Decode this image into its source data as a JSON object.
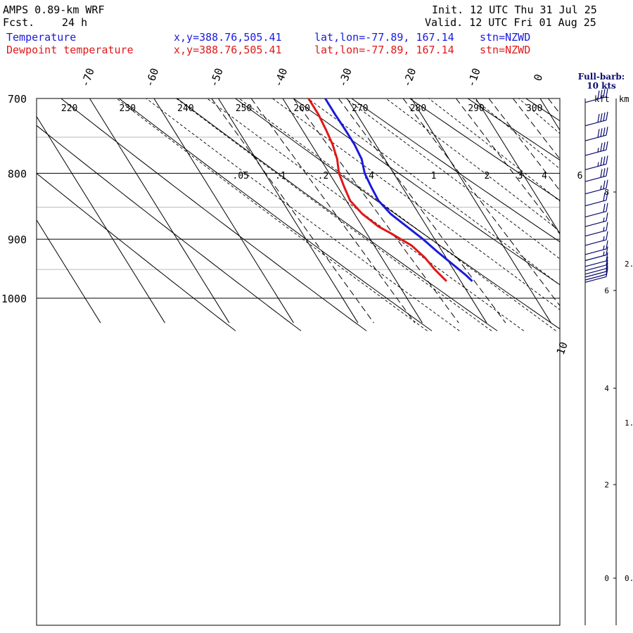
{
  "header": {
    "model": "AMPS 0.89-km WRF",
    "fcst_label": "Fcst.",
    "fcst_value": "24 h",
    "init": "Init. 12 UTC Thu 31 Jul 25",
    "valid": "Valid. 12 UTC Fri 01 Aug 25"
  },
  "legend": [
    {
      "name": "Temperature",
      "xy": "x,y=388.76,505.41",
      "latlon": "lat,lon=-77.89, 167.14",
      "stn": "stn=NZWD",
      "color": "#1a1add"
    },
    {
      "name": "Dewpoint temperature",
      "xy": "x,y=388.76,505.41",
      "latlon": "lat,lon=-77.89, 167.14",
      "stn": "stn=NZWD",
      "color": "#e01818"
    }
  ],
  "wind_key": {
    "line1": "Full-barb:",
    "line2": "10 kts"
  },
  "height_axis": {
    "left_label": "kft",
    "right_label": "km"
  },
  "chart_data": {
    "type": "line",
    "chart_kind": "skew-T log-p diagram",
    "pressure_levels": [
      "700",
      "800",
      "900",
      "1000"
    ],
    "pressure_range": [
      700,
      1040
    ],
    "temperature_ticks": [
      "-70",
      "-60",
      "-50",
      "-40",
      "-30",
      "-20",
      "-10",
      "0",
      "10"
    ],
    "theta_labels": [
      "220",
      "230",
      "240",
      "250",
      "260",
      "270",
      "280",
      "290",
      "300"
    ],
    "mixing_ratio_labels": [
      ".05",
      ".1",
      ".2",
      ".4",
      "1",
      "2",
      "3",
      "4",
      "6"
    ],
    "kft_ticks": [
      "0",
      "2",
      "4",
      "6",
      "8"
    ],
    "km_ticks": [
      "0.",
      "1.",
      "2."
    ],
    "series": [
      {
        "name": "Temperature",
        "color": "#1a1add",
        "points": [
          [
            700,
            -33.4
          ],
          [
            720,
            -33.4
          ],
          [
            740,
            -33.3
          ],
          [
            760,
            -33.3
          ],
          [
            780,
            -33.6
          ],
          [
            800,
            -34.5
          ],
          [
            820,
            -34.8
          ],
          [
            840,
            -35.0
          ],
          [
            860,
            -34.4
          ],
          [
            880,
            -33.1
          ],
          [
            900,
            -31.8
          ],
          [
            920,
            -30.8
          ],
          [
            940,
            -29.7
          ],
          [
            960,
            -28.6
          ],
          [
            970,
            -28.2
          ]
        ]
      },
      {
        "name": "Dewpoint temperature",
        "color": "#e01818",
        "points": [
          [
            700,
            -36.0
          ],
          [
            720,
            -36.0
          ],
          [
            740,
            -36.3
          ],
          [
            760,
            -36.7
          ],
          [
            780,
            -37.4
          ],
          [
            800,
            -38.5
          ],
          [
            820,
            -39.0
          ],
          [
            840,
            -39.4
          ],
          [
            860,
            -38.8
          ],
          [
            880,
            -37.5
          ],
          [
            890,
            -36.3
          ],
          [
            910,
            -34.2
          ],
          [
            930,
            -33.3
          ],
          [
            950,
            -32.9
          ],
          [
            970,
            -32.2
          ]
        ]
      }
    ],
    "winds": [
      {
        "p": 705,
        "spd": 40
      },
      {
        "p": 735,
        "spd": 40
      },
      {
        "p": 755,
        "spd": 40
      },
      {
        "p": 775,
        "spd": 35
      },
      {
        "p": 795,
        "spd": 35
      },
      {
        "p": 812,
        "spd": 30
      },
      {
        "p": 830,
        "spd": 25
      },
      {
        "p": 848,
        "spd": 20
      },
      {
        "p": 865,
        "spd": 20
      },
      {
        "p": 880,
        "spd": 15
      },
      {
        "p": 895,
        "spd": 15
      },
      {
        "p": 910,
        "spd": 15
      },
      {
        "p": 925,
        "spd": 15
      },
      {
        "p": 935,
        "spd": 15
      },
      {
        "p": 945,
        "spd": 10
      },
      {
        "p": 952,
        "spd": 10
      },
      {
        "p": 958,
        "spd": 10
      },
      {
        "p": 963,
        "spd": 10
      },
      {
        "p": 968,
        "spd": 10
      },
      {
        "p": 972,
        "spd": 10
      }
    ]
  }
}
